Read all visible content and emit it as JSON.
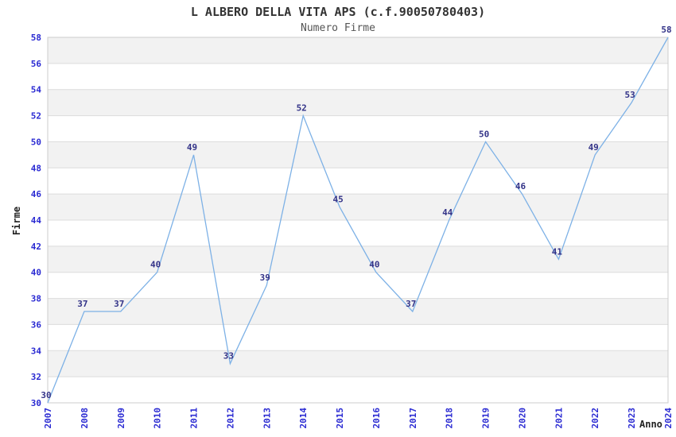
{
  "chart_data": {
    "type": "line",
    "title": "L ALBERO DELLA VITA APS (c.f.90050780403)",
    "subtitle": "Numero Firme",
    "xlabel": "Anno",
    "ylabel": "Firme",
    "categories": [
      "2007",
      "2008",
      "2009",
      "2010",
      "2011",
      "2012",
      "2013",
      "2014",
      "2015",
      "2016",
      "2017",
      "2018",
      "2019",
      "2020",
      "2021",
      "2022",
      "2023",
      "2024"
    ],
    "series": [
      {
        "name": "Numero Firme",
        "values": [
          30,
          37,
          37,
          40,
          49,
          33,
          39,
          52,
          45,
          40,
          37,
          44,
          50,
          46,
          41,
          49,
          53,
          58
        ]
      }
    ],
    "data_labels_visible": true,
    "ylim": [
      30,
      58
    ],
    "ytick_step": 2,
    "grid": "horizontal-bands",
    "legend": "none",
    "colors": {
      "line": "#7db1e6",
      "band_light": "#ffffff",
      "band_dark": "#f2f2f2",
      "gridline": "#dcdcdc",
      "plot_border": "#cccccc",
      "tick_label": "#2a2ad2",
      "data_label": "#333388"
    }
  }
}
